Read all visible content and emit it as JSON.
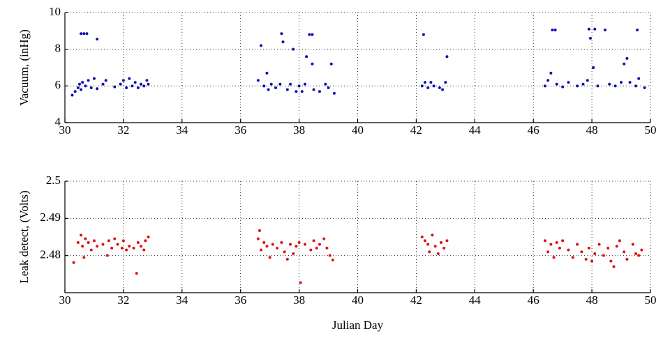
{
  "chart_data": [
    {
      "type": "scatter",
      "ylabel": "Vacuum, (inHg)",
      "color": "#1010b0",
      "grid": true,
      "xlim": [
        30,
        50
      ],
      "xticks": [
        30,
        32,
        34,
        36,
        38,
        40,
        42,
        44,
        46,
        48,
        50
      ],
      "ylim": [
        4,
        10
      ],
      "yticks": [
        4,
        6,
        8,
        10
      ],
      "x": [
        30.25,
        30.35,
        30.45,
        30.5,
        30.55,
        30.6,
        30.7,
        30.8,
        30.9,
        31.0,
        31.1,
        31.3,
        31.4,
        30.55,
        30.65,
        30.75,
        31.1,
        31.7,
        31.9,
        32.0,
        32.1,
        32.2,
        32.3,
        32.4,
        32.5,
        32.6,
        32.7,
        32.8,
        32.85,
        36.6,
        36.7,
        36.8,
        36.9,
        36.95,
        37.05,
        37.2,
        37.35,
        37.4,
        37.45,
        37.6,
        37.7,
        37.8,
        37.9,
        38.0,
        38.1,
        38.2,
        38.25,
        38.35,
        38.45,
        38.45,
        38.5,
        38.7,
        38.9,
        39.0,
        39.1,
        39.2,
        42.2,
        42.25,
        42.3,
        42.4,
        42.5,
        42.6,
        42.8,
        42.9,
        43.0,
        43.05,
        46.4,
        46.5,
        46.6,
        46.65,
        46.75,
        46.8,
        47.0,
        47.2,
        47.5,
        47.7,
        47.85,
        47.9,
        47.95,
        48.05,
        48.1,
        48.2,
        48.45,
        48.6,
        48.8,
        49.0,
        49.1,
        49.2,
        49.3,
        49.5,
        49.55,
        49.6,
        49.8
      ],
      "values": [
        5.5,
        5.7,
        5.9,
        6.1,
        5.8,
        6.2,
        6.0,
        6.3,
        5.9,
        6.4,
        5.85,
        6.1,
        6.3,
        8.85,
        8.85,
        8.85,
        8.55,
        5.95,
        6.1,
        6.3,
        5.9,
        6.4,
        6.0,
        6.2,
        5.9,
        6.1,
        6.0,
        6.3,
        6.1,
        6.3,
        8.2,
        6.0,
        6.7,
        5.8,
        6.1,
        5.9,
        6.1,
        8.85,
        8.4,
        5.8,
        6.1,
        8.0,
        5.7,
        6.0,
        5.7,
        6.1,
        7.6,
        8.8,
        8.8,
        7.2,
        5.8,
        5.7,
        6.1,
        5.9,
        7.2,
        5.6,
        6.0,
        8.8,
        6.2,
        5.9,
        6.2,
        6.0,
        5.9,
        5.8,
        6.2,
        7.6,
        6.0,
        6.3,
        6.7,
        9.05,
        9.05,
        6.1,
        5.95,
        6.2,
        6.0,
        6.1,
        6.3,
        9.1,
        8.6,
        7.0,
        9.1,
        6.0,
        9.05,
        6.1,
        6.0,
        6.2,
        7.2,
        7.5,
        6.2,
        6.0,
        9.05,
        6.4,
        5.9
      ]
    },
    {
      "type": "scatter",
      "ylabel": "Leak detect, (Volts)",
      "xlabel": "Julian Day",
      "color": "#e01010",
      "grid": true,
      "xlim": [
        30,
        50
      ],
      "xticks": [
        30,
        32,
        34,
        36,
        38,
        40,
        42,
        44,
        46,
        48,
        50
      ],
      "ylim": [
        2.47,
        2.5
      ],
      "yticks": [
        2.48,
        2.49,
        2.5
      ],
      "x": [
        30.3,
        30.45,
        30.55,
        30.6,
        30.65,
        30.7,
        30.8,
        30.9,
        31.0,
        31.1,
        31.3,
        31.45,
        31.5,
        31.6,
        31.7,
        31.8,
        31.95,
        32.0,
        32.1,
        32.2,
        32.35,
        32.45,
        32.5,
        32.6,
        32.7,
        32.75,
        32.85,
        36.6,
        36.65,
        36.7,
        36.8,
        36.9,
        37.0,
        37.1,
        37.25,
        37.4,
        37.5,
        37.6,
        37.7,
        37.8,
        37.9,
        38.0,
        38.05,
        38.2,
        38.4,
        38.5,
        38.6,
        38.7,
        38.85,
        38.95,
        39.05,
        39.15,
        42.2,
        42.3,
        42.4,
        42.45,
        42.55,
        42.65,
        42.75,
        42.85,
        42.95,
        43.05,
        46.4,
        46.5,
        46.6,
        46.7,
        46.8,
        46.9,
        47.0,
        47.2,
        47.35,
        47.5,
        47.65,
        47.8,
        47.9,
        48.0,
        48.1,
        48.25,
        48.4,
        48.55,
        48.65,
        48.75,
        48.85,
        48.95,
        49.1,
        49.2,
        49.4,
        49.5,
        49.6,
        49.7
      ],
      "values": [
        2.4781,
        2.4835,
        2.4855,
        2.4825,
        2.4795,
        2.4845,
        2.4835,
        2.4815,
        2.484,
        2.4825,
        2.483,
        2.48,
        2.484,
        2.482,
        2.4845,
        2.483,
        2.482,
        2.484,
        2.4815,
        2.4825,
        2.482,
        2.4752,
        2.4835,
        2.4825,
        2.4815,
        2.484,
        2.485,
        2.4845,
        2.4867,
        2.4815,
        2.4835,
        2.4825,
        2.4795,
        2.483,
        2.482,
        2.4835,
        2.481,
        2.479,
        2.483,
        2.4805,
        2.4825,
        2.4835,
        2.4727,
        2.483,
        2.4815,
        2.484,
        2.482,
        2.483,
        2.4845,
        2.482,
        2.48,
        2.4788,
        2.485,
        2.484,
        2.483,
        2.481,
        2.4855,
        2.4825,
        2.4805,
        2.4835,
        2.482,
        2.484,
        2.484,
        2.481,
        2.483,
        2.4795,
        2.4835,
        2.482,
        2.484,
        2.4815,
        2.4795,
        2.483,
        2.481,
        2.479,
        2.482,
        2.4785,
        2.4805,
        2.483,
        2.48,
        2.482,
        2.4785,
        2.477,
        2.4825,
        2.484,
        2.481,
        2.479,
        2.483,
        2.4805,
        2.48,
        2.4815
      ]
    }
  ]
}
